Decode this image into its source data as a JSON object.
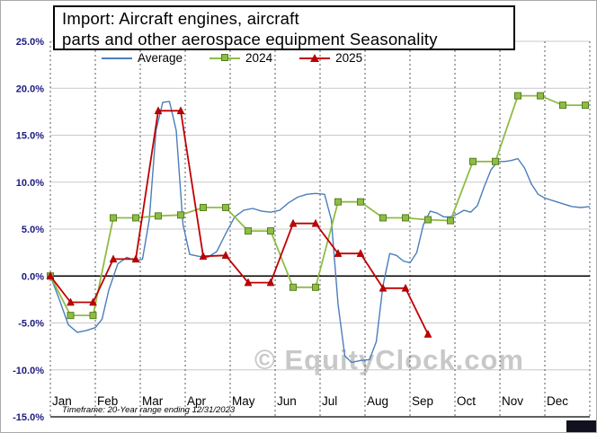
{
  "header": {
    "title_line1": "Import: Aircraft engines, aircraft",
    "title_line2": "parts and other aerospace equipment Seasonality"
  },
  "watermark": "© EquityClock.com",
  "footnote": "Timeframe: 20-Year range ending 12/31/2023",
  "chart_data": {
    "type": "line",
    "title": "Import: Aircraft engines, aircraft parts and other aerospace equipment Seasonality",
    "legend_position": "top",
    "grid": true,
    "x_axis": {
      "label": "",
      "months": [
        "Jan",
        "Feb",
        "Mar",
        "Apr",
        "May",
        "Jun",
        "Jul",
        "Aug",
        "Sep",
        "Oct",
        "Nov",
        "Dec"
      ],
      "range_months": [
        0,
        12
      ]
    },
    "y_axis": {
      "label": "",
      "unit": "percent",
      "min": -15,
      "max": 25,
      "step": 5,
      "tick_labels": [
        "25.0%",
        "20.0%",
        "15.0%",
        "10.0%",
        "5.0%",
        "0.0%",
        "-5.0%",
        "-10.0%",
        "-15.0%"
      ]
    },
    "style": {
      "grid_color": "#c9c9c9",
      "month_grid_color": "#595959",
      "zero_line_color": "#000000",
      "axis_line_color": "#000000",
      "axis_label_color": "#1a1a80",
      "month_label_color": "#000000",
      "watermark_color": "#c8c8c8"
    },
    "series": [
      {
        "name": "Average",
        "color": "#4a7ebb",
        "marker": "none",
        "line_width": 1.4,
        "points": [
          [
            0,
            0
          ],
          [
            0.2,
            -2.5
          ],
          [
            0.4,
            -5.2
          ],
          [
            0.6,
            -6
          ],
          [
            0.8,
            -5.8
          ],
          [
            1,
            -5.5
          ],
          [
            1.15,
            -4.6
          ],
          [
            1.3,
            -1.5
          ],
          [
            1.5,
            1.3
          ],
          [
            1.7,
            2
          ],
          [
            1.9,
            1.6
          ],
          [
            2.05,
            1.8
          ],
          [
            2.2,
            6
          ],
          [
            2.35,
            15.5
          ],
          [
            2.5,
            18.5
          ],
          [
            2.65,
            18.6
          ],
          [
            2.8,
            15.5
          ],
          [
            2.95,
            5.5
          ],
          [
            3.1,
            2.3
          ],
          [
            3.3,
            2.1
          ],
          [
            3.5,
            2
          ],
          [
            3.7,
            2.6
          ],
          [
            3.9,
            4.5
          ],
          [
            4.1,
            6.3
          ],
          [
            4.3,
            7
          ],
          [
            4.5,
            7.2
          ],
          [
            4.7,
            6.9
          ],
          [
            4.9,
            6.8
          ],
          [
            5.1,
            7
          ],
          [
            5.3,
            7.8
          ],
          [
            5.5,
            8.4
          ],
          [
            5.7,
            8.7
          ],
          [
            5.9,
            8.8
          ],
          [
            6.1,
            8.7
          ],
          [
            6.25,
            6
          ],
          [
            6.4,
            -3
          ],
          [
            6.55,
            -8.5
          ],
          [
            6.7,
            -9.2
          ],
          [
            6.9,
            -9
          ],
          [
            7.1,
            -8.9
          ],
          [
            7.25,
            -7
          ],
          [
            7.4,
            -1
          ],
          [
            7.55,
            2.4
          ],
          [
            7.7,
            2.2
          ],
          [
            7.85,
            1.6
          ],
          [
            8,
            1.4
          ],
          [
            8.15,
            2.5
          ],
          [
            8.3,
            5.5
          ],
          [
            8.45,
            6.9
          ],
          [
            8.6,
            6.7
          ],
          [
            8.75,
            6.3
          ],
          [
            8.9,
            6.3
          ],
          [
            9.05,
            6.6
          ],
          [
            9.2,
            7
          ],
          [
            9.35,
            6.8
          ],
          [
            9.5,
            7.5
          ],
          [
            9.65,
            9.5
          ],
          [
            9.8,
            11.3
          ],
          [
            9.95,
            12.2
          ],
          [
            10.1,
            12.2
          ],
          [
            10.25,
            12.3
          ],
          [
            10.4,
            12.5
          ],
          [
            10.55,
            11.5
          ],
          [
            10.7,
            9.8
          ],
          [
            10.85,
            8.7
          ],
          [
            11,
            8.3
          ],
          [
            11.2,
            8
          ],
          [
            11.4,
            7.7
          ],
          [
            11.6,
            7.4
          ],
          [
            11.8,
            7.3
          ],
          [
            12,
            7.4
          ]
        ]
      },
      {
        "name": "2024",
        "color": "#8fbc45",
        "marker": "square",
        "marker_edge": "#55801f",
        "line_width": 1.8,
        "points": [
          [
            0,
            0
          ],
          [
            0.45,
            -4.2
          ],
          [
            0.95,
            -4.2
          ],
          [
            1.4,
            6.2
          ],
          [
            1.9,
            6.2
          ],
          [
            2.4,
            6.4
          ],
          [
            2.9,
            6.5
          ],
          [
            3.4,
            7.3
          ],
          [
            3.9,
            7.3
          ],
          [
            4.4,
            4.8
          ],
          [
            4.9,
            4.8
          ],
          [
            5.4,
            -1.2
          ],
          [
            5.9,
            -1.2
          ],
          [
            6.4,
            7.9
          ],
          [
            6.9,
            7.9
          ],
          [
            7.4,
            6.2
          ],
          [
            7.9,
            6.2
          ],
          [
            8.4,
            6
          ],
          [
            8.9,
            5.9
          ],
          [
            9.4,
            12.2
          ],
          [
            9.9,
            12.2
          ],
          [
            10.4,
            19.2
          ],
          [
            10.9,
            19.2
          ],
          [
            11.4,
            18.2
          ],
          [
            11.9,
            18.2
          ]
        ]
      },
      {
        "name": "2025",
        "color": "#c00000",
        "marker": "triangle",
        "marker_edge": "#900000",
        "line_width": 1.8,
        "points": [
          [
            0,
            0
          ],
          [
            0.45,
            -2.8
          ],
          [
            0.95,
            -2.8
          ],
          [
            1.4,
            1.8
          ],
          [
            1.9,
            1.8
          ],
          [
            2.4,
            17.6
          ],
          [
            2.9,
            17.6
          ],
          [
            3.4,
            2.1
          ],
          [
            3.9,
            2.2
          ],
          [
            4.4,
            -0.7
          ],
          [
            4.9,
            -0.7
          ],
          [
            5.4,
            5.6
          ],
          [
            5.9,
            5.6
          ],
          [
            6.4,
            2.4
          ],
          [
            6.9,
            2.4
          ],
          [
            7.4,
            -1.3
          ],
          [
            7.9,
            -1.3
          ],
          [
            8.4,
            -6.2
          ]
        ]
      }
    ]
  }
}
